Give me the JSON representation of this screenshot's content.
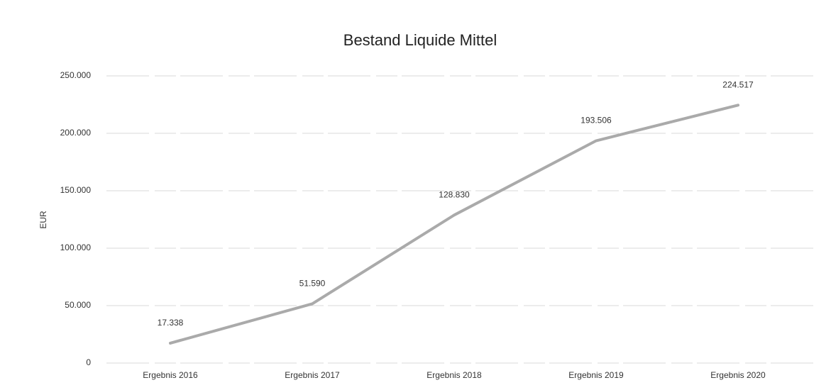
{
  "chart_data": {
    "type": "line",
    "title": "Bestand Liquide Mittel",
    "y_label": "EUR",
    "categories": [
      "Ergebnis 2016",
      "Ergebnis 2017",
      "Ergebnis 2018",
      "Ergebnis 2019",
      "Ergebnis 2020"
    ],
    "values": [
      17338,
      51590,
      128830,
      193506,
      224517
    ],
    "value_labels": [
      "17.338",
      "51.590",
      "128.830",
      "193.506",
      "224.517"
    ],
    "color": "#aaaaaa",
    "ylim": [
      0,
      250000
    ],
    "yticks": [
      0,
      {
        "value": 50000,
        "label": "50.000"
      },
      {
        "value": 100000,
        "label": "100.000"
      },
      {
        "value": 150000,
        "label": "150.000"
      },
      {
        "value": 200000,
        "label": "200.000"
      },
      {
        "value": 250000,
        "label": "250.000"
      }
    ],
    "grid": true
  }
}
